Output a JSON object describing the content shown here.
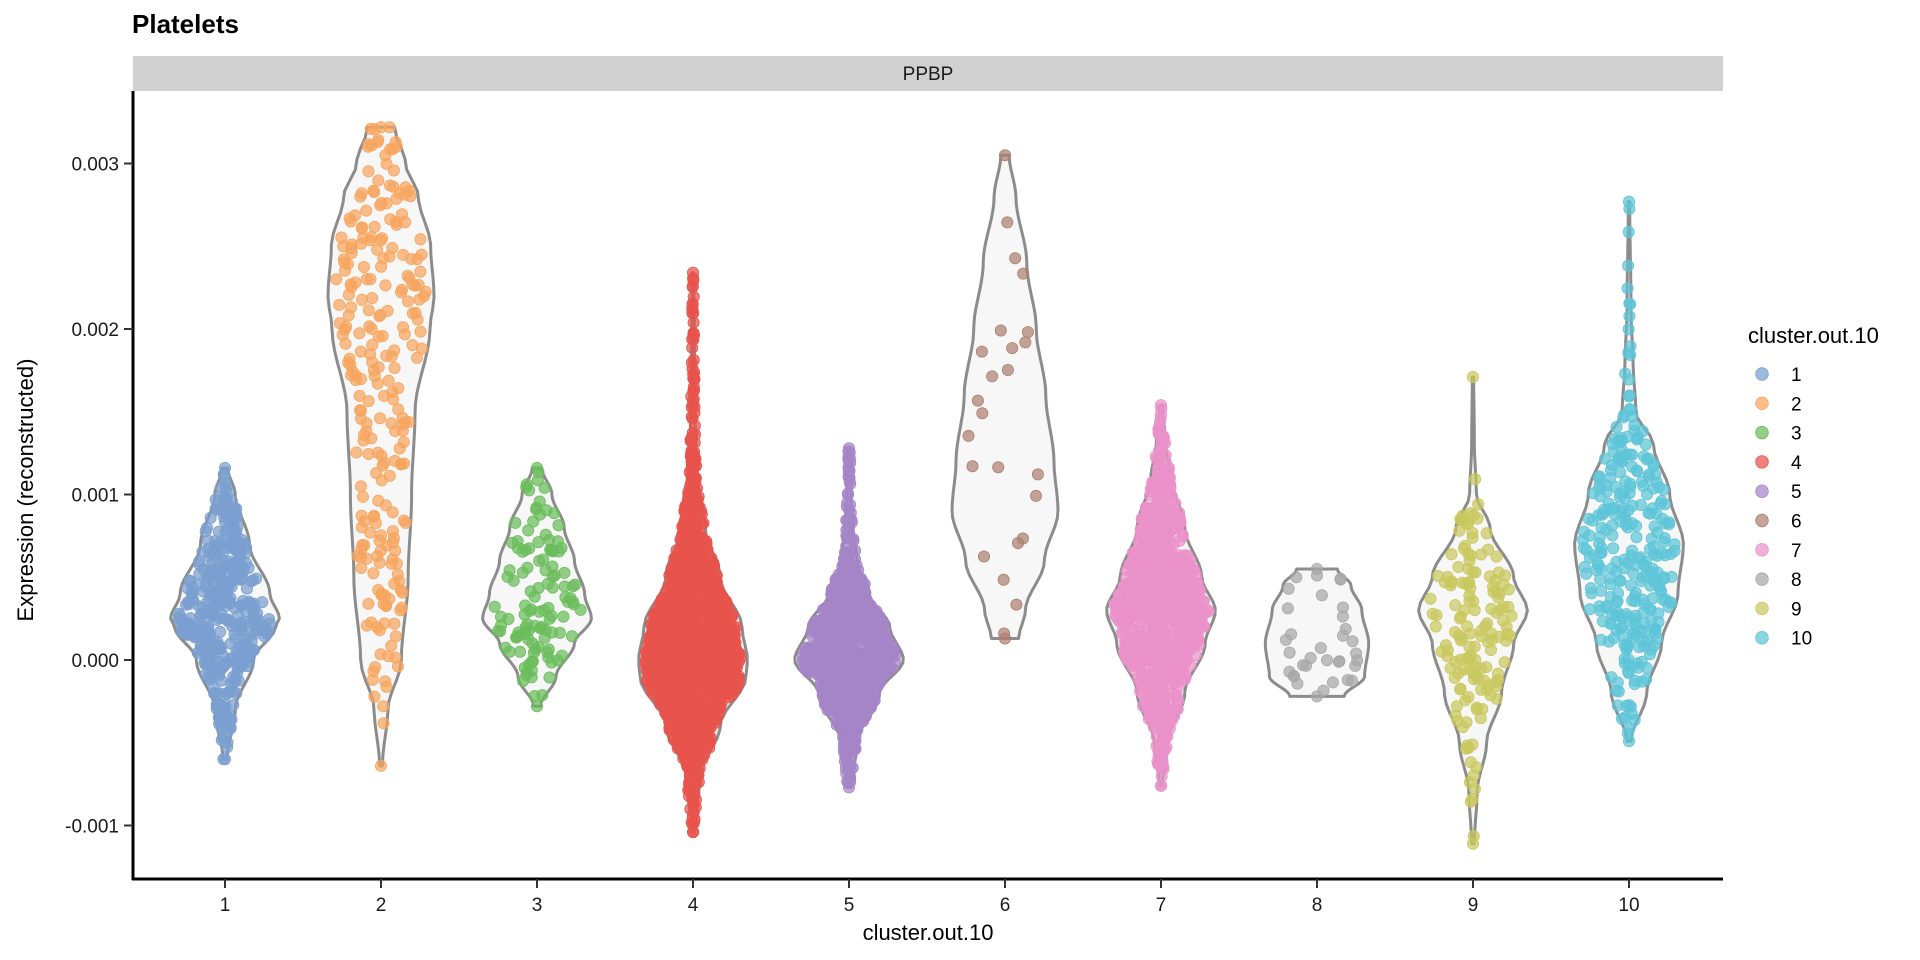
{
  "chart_data": {
    "type": "violin",
    "title": "Platelets",
    "facet_label": "PPBP",
    "xlabel": "cluster.out.10",
    "ylabel": "Expression (reconstructed)",
    "categories": [
      "1",
      "2",
      "3",
      "4",
      "5",
      "6",
      "7",
      "8",
      "9",
      "10"
    ],
    "yticks": [
      -0.001,
      0.0,
      0.001,
      0.002,
      0.003
    ],
    "ytick_labels": [
      "-0.001",
      "0.000",
      "0.001",
      "0.002",
      "0.003"
    ],
    "ylim": [
      -0.00132,
      0.00323
    ],
    "grid": false,
    "legend": {
      "title": "cluster.out.10",
      "position": "right",
      "entries": [
        "1",
        "2",
        "3",
        "4",
        "5",
        "6",
        "7",
        "8",
        "9",
        "10"
      ]
    },
    "colors": [
      "#7a9fd0",
      "#f7a55e",
      "#6bbd5b",
      "#e8534c",
      "#a585c8",
      "#ad8072",
      "#ea91c9",
      "#a8a8a8",
      "#c9c85e",
      "#5ec5d8"
    ],
    "series": [
      {
        "name": "1",
        "n": 400,
        "min": -0.0006,
        "max": 0.00116,
        "profile": [
          [
            -0.0006,
            0.03
          ],
          [
            -0.0003,
            0.15
          ],
          [
            0.0,
            0.42
          ],
          [
            0.0002,
            0.74
          ],
          [
            0.00025,
            0.8
          ],
          [
            0.0004,
            0.66
          ],
          [
            0.0007,
            0.36
          ],
          [
            0.001,
            0.15
          ],
          [
            0.00116,
            0.04
          ]
        ]
      },
      {
        "name": "2",
        "n": 250,
        "min": -0.00064,
        "max": 0.00322,
        "profile": [
          [
            -0.00064,
            0.02
          ],
          [
            -0.0003,
            0.1
          ],
          [
            0.0,
            0.3
          ],
          [
            0.0005,
            0.4
          ],
          [
            0.001,
            0.45
          ],
          [
            0.0015,
            0.5
          ],
          [
            0.002,
            0.72
          ],
          [
            0.0022,
            0.78
          ],
          [
            0.0025,
            0.73
          ],
          [
            0.0028,
            0.55
          ],
          [
            0.003,
            0.36
          ],
          [
            0.00322,
            0.2
          ]
        ]
      },
      {
        "name": "3",
        "n": 120,
        "min": -0.00028,
        "max": 0.00116,
        "profile": [
          [
            -0.00028,
            0.05
          ],
          [
            -0.0001,
            0.28
          ],
          [
            0.0001,
            0.55
          ],
          [
            0.00025,
            0.8
          ],
          [
            0.0004,
            0.7
          ],
          [
            0.0006,
            0.55
          ],
          [
            0.0008,
            0.4
          ],
          [
            0.001,
            0.22
          ],
          [
            0.00116,
            0.07
          ]
        ]
      },
      {
        "name": "4",
        "n": 1500,
        "min": -0.00104,
        "max": 0.00234,
        "profile": [
          [
            -0.00104,
            0.02
          ],
          [
            -0.0007,
            0.1
          ],
          [
            -0.0004,
            0.4
          ],
          [
            -0.0001,
            0.78
          ],
          [
            0.0,
            0.8
          ],
          [
            0.0002,
            0.72
          ],
          [
            0.0005,
            0.4
          ],
          [
            0.0008,
            0.18
          ],
          [
            0.0011,
            0.06
          ],
          [
            0.0015,
            0.03
          ],
          [
            0.0019,
            0.02
          ],
          [
            0.00234,
            0.01
          ]
        ]
      },
      {
        "name": "5",
        "n": 900,
        "min": -0.00077,
        "max": 0.00128,
        "profile": [
          [
            -0.00077,
            0.03
          ],
          [
            -0.0005,
            0.12
          ],
          [
            -0.0002,
            0.45
          ],
          [
            0.0,
            0.8
          ],
          [
            0.0002,
            0.6
          ],
          [
            0.0004,
            0.3
          ],
          [
            0.0006,
            0.12
          ],
          [
            0.0008,
            0.06
          ],
          [
            0.001,
            0.03
          ],
          [
            0.00128,
            0.02
          ]
        ]
      },
      {
        "name": "6",
        "n": 25,
        "min": 0.00013,
        "max": 0.00305,
        "profile": [
          [
            0.00013,
            0.2
          ],
          [
            0.0003,
            0.3
          ],
          [
            0.0006,
            0.58
          ],
          [
            0.0009,
            0.78
          ],
          [
            0.0012,
            0.72
          ],
          [
            0.0016,
            0.6
          ],
          [
            0.002,
            0.46
          ],
          [
            0.0024,
            0.32
          ],
          [
            0.0028,
            0.16
          ],
          [
            0.00305,
            0.06
          ]
        ]
      },
      {
        "name": "7",
        "n": 900,
        "min": -0.00076,
        "max": 0.00154,
        "profile": [
          [
            -0.00076,
            0.02
          ],
          [
            -0.0005,
            0.1
          ],
          [
            -0.0002,
            0.35
          ],
          [
            0.0001,
            0.65
          ],
          [
            0.0003,
            0.8
          ],
          [
            0.0005,
            0.6
          ],
          [
            0.0008,
            0.35
          ],
          [
            0.0011,
            0.15
          ],
          [
            0.0013,
            0.07
          ],
          [
            0.00154,
            0.02
          ]
        ]
      },
      {
        "name": "8",
        "n": 35,
        "min": -0.00022,
        "max": 0.00055,
        "profile": [
          [
            -0.00022,
            0.4
          ],
          [
            -0.0001,
            0.7
          ],
          [
            0.0001,
            0.76
          ],
          [
            0.0003,
            0.66
          ],
          [
            0.00045,
            0.5
          ],
          [
            0.00055,
            0.3
          ]
        ]
      },
      {
        "name": "9",
        "n": 150,
        "min": -0.00111,
        "max": 0.00171,
        "profile": [
          [
            -0.00111,
            0.02
          ],
          [
            -0.0008,
            0.06
          ],
          [
            -0.0005,
            0.2
          ],
          [
            -0.0002,
            0.42
          ],
          [
            0.0001,
            0.6
          ],
          [
            0.0003,
            0.8
          ],
          [
            0.0005,
            0.6
          ],
          [
            0.0008,
            0.25
          ],
          [
            0.001,
            0.05
          ],
          [
            0.0013,
            0.02
          ],
          [
            0.00171,
            0.01
          ]
        ]
      },
      {
        "name": "10",
        "n": 300,
        "min": -0.00049,
        "max": 0.00277,
        "profile": [
          [
            -0.00049,
            0.03
          ],
          [
            -0.0002,
            0.26
          ],
          [
            0.0001,
            0.48
          ],
          [
            0.0004,
            0.72
          ],
          [
            0.0007,
            0.8
          ],
          [
            0.001,
            0.6
          ],
          [
            0.0013,
            0.36
          ],
          [
            0.0015,
            0.1
          ],
          [
            0.0018,
            0.06
          ],
          [
            0.0021,
            0.03
          ],
          [
            0.00277,
            0.01
          ]
        ]
      }
    ]
  }
}
